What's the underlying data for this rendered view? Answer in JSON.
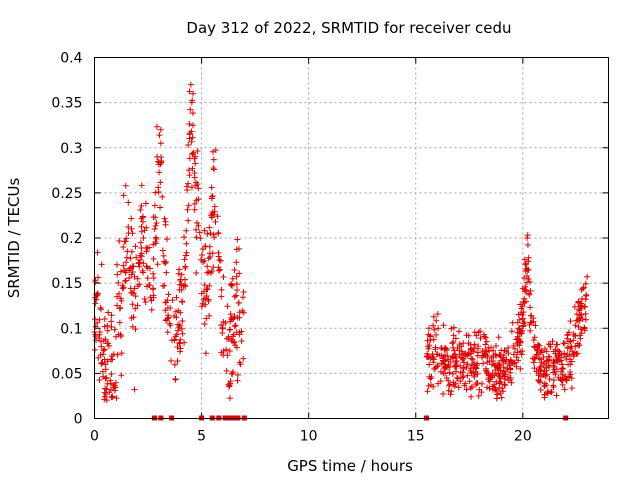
{
  "chart_data": {
    "type": "scatter",
    "title": "Day 312 of 2022, SRMTID for receiver cedu",
    "xlabel": "GPS time / hours",
    "ylabel": "SRMTID / TECUs",
    "xlim": [
      0,
      24
    ],
    "ylim": [
      0,
      0.4
    ],
    "x_ticks": [
      0,
      5,
      10,
      15,
      20
    ],
    "x_tick_labels": [
      "0",
      "5",
      "10",
      "15",
      "20"
    ],
    "y_ticks": [
      0,
      0.05,
      0.1,
      0.15,
      0.2,
      0.25,
      0.3,
      0.35,
      0.4
    ],
    "y_tick_labels": [
      "0",
      "0.05",
      "0.1",
      "0.15",
      "0.2",
      "0.25",
      "0.3",
      "0.35",
      "0.4"
    ],
    "grid": true,
    "marker": "+",
    "color": "#e00000",
    "series": [
      {
        "name": "SRMTID",
        "segments": [
          {
            "x_start": 0.0,
            "x_end": 7.0,
            "profile": [
              [
                0.0,
                0.13
              ],
              [
                0.1,
                0.13
              ],
              [
                0.2,
                0.09
              ],
              [
                0.4,
                0.08
              ],
              [
                0.6,
                0.06
              ],
              [
                0.8,
                0.05
              ],
              [
                1.0,
                0.06
              ],
              [
                1.1,
                0.13
              ],
              [
                1.3,
                0.14
              ],
              [
                1.5,
                0.2
              ],
              [
                1.7,
                0.16
              ],
              [
                1.9,
                0.12
              ],
              [
                2.1,
                0.2
              ],
              [
                2.3,
                0.19
              ],
              [
                2.5,
                0.16
              ],
              [
                2.7,
                0.12
              ],
              [
                2.9,
                0.25
              ],
              [
                3.1,
                0.27
              ],
              [
                3.3,
                0.17
              ],
              [
                3.5,
                0.1
              ],
              [
                3.7,
                0.08
              ],
              [
                3.9,
                0.11
              ],
              [
                4.1,
                0.12
              ],
              [
                4.3,
                0.22
              ],
              [
                4.5,
                0.32
              ],
              [
                4.7,
                0.28
              ],
              [
                4.9,
                0.2
              ],
              [
                5.1,
                0.16
              ],
              [
                5.3,
                0.14
              ],
              [
                5.5,
                0.22
              ],
              [
                5.7,
                0.23
              ],
              [
                5.9,
                0.12
              ],
              [
                6.1,
                0.09
              ],
              [
                6.3,
                0.1
              ],
              [
                6.5,
                0.1
              ],
              [
                6.7,
                0.13
              ],
              [
                6.9,
                0.1
              ],
              [
                7.0,
                0.1
              ]
            ],
            "spread": 0.035,
            "count": 520
          },
          {
            "x_start": 15.5,
            "x_end": 23.0,
            "profile": [
              [
                15.5,
                0.07
              ],
              [
                16.0,
                0.07
              ],
              [
                16.5,
                0.06
              ],
              [
                17.0,
                0.07
              ],
              [
                17.5,
                0.06
              ],
              [
                18.0,
                0.07
              ],
              [
                18.5,
                0.06
              ],
              [
                19.0,
                0.05
              ],
              [
                19.5,
                0.07
              ],
              [
                20.0,
                0.11
              ],
              [
                20.2,
                0.17
              ],
              [
                20.5,
                0.08
              ],
              [
                21.0,
                0.05
              ],
              [
                21.5,
                0.06
              ],
              [
                22.0,
                0.06
              ],
              [
                22.3,
                0.07
              ],
              [
                22.6,
                0.11
              ],
              [
                23.0,
                0.13
              ]
            ],
            "spread": 0.018,
            "count": 620
          }
        ],
        "peaks": [
          {
            "x": 4.5,
            "y": 0.37
          },
          {
            "x": 4.6,
            "y": 0.36
          },
          {
            "x": 3.1,
            "y": 0.305
          },
          {
            "x": 4.6,
            "y": 0.325
          },
          {
            "x": 20.2,
            "y": 0.2
          },
          {
            "x": 23.0,
            "y": 0.157
          }
        ],
        "zero_markers_x": [
          2.8,
          3.1,
          3.6,
          5.0,
          5.5,
          5.8,
          6.1,
          6.3,
          6.5,
          6.7,
          7.0,
          15.5,
          22.0
        ]
      }
    ]
  }
}
